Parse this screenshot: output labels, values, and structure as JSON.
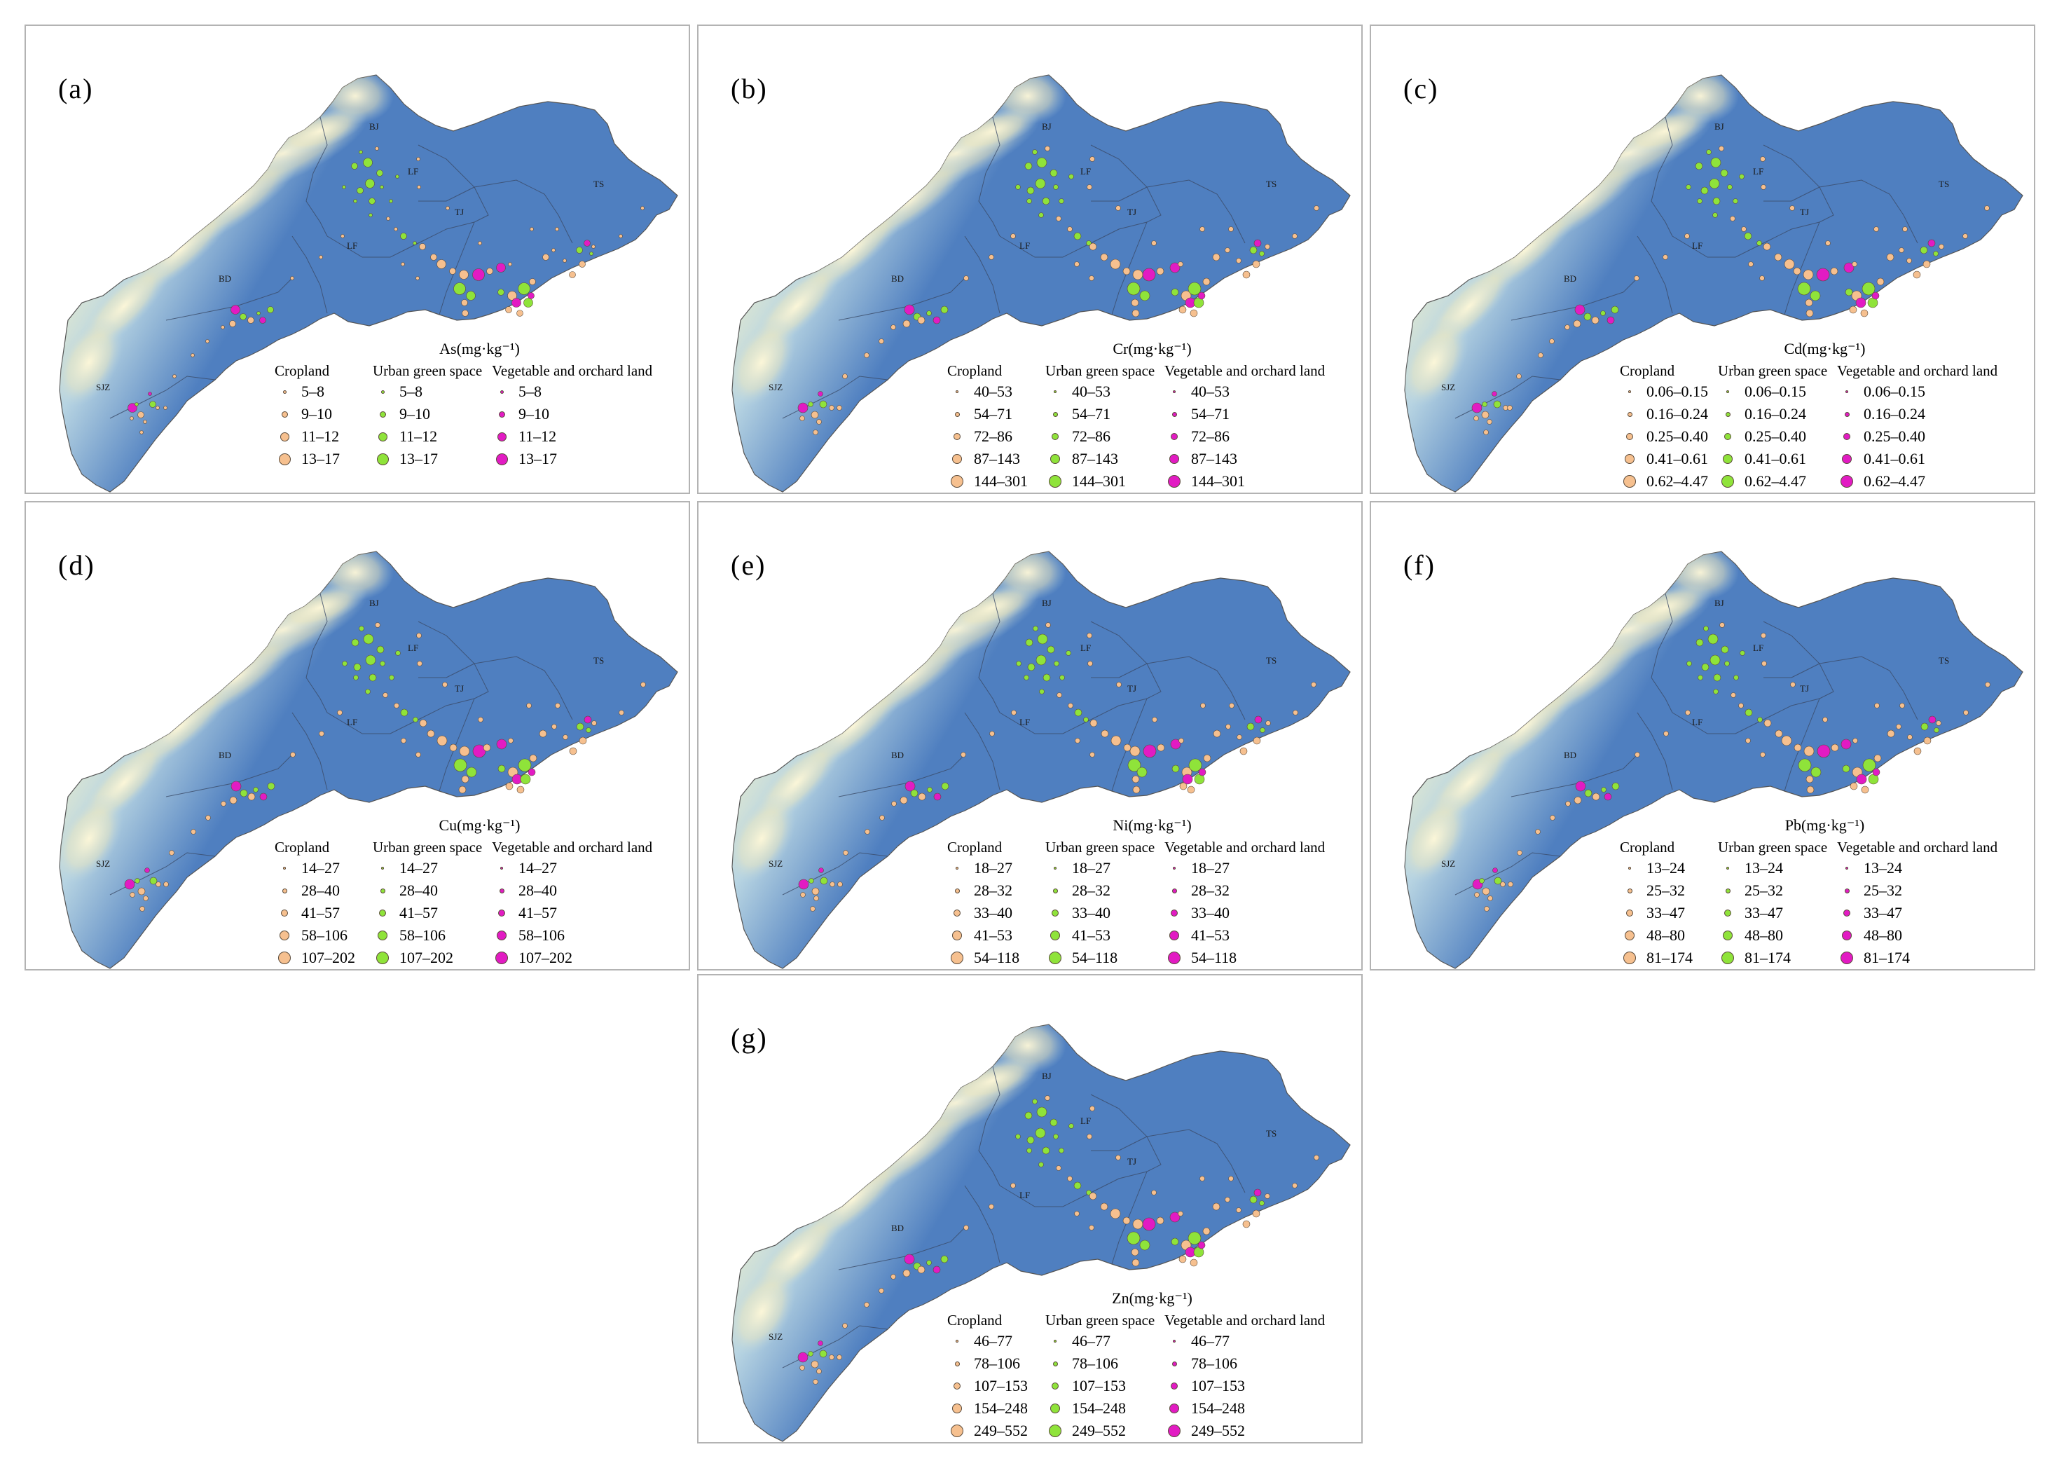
{
  "unit": "(mg·kg⁻¹)",
  "categories": [
    "Cropland",
    "Urban green space",
    "Vegetable and orchard land"
  ],
  "colors": {
    "cropland": "#f6c08f",
    "urban_green_space": "#8fe33a",
    "vegetable_orchard": "#e21bc3",
    "outline": "#555555",
    "terrain_low": "#4f7fc0",
    "terrain_high": "#e05a30"
  },
  "city_labels": [
    "BJ",
    "LF",
    "TJ",
    "LF",
    "TS",
    "BD",
    "SJZ"
  ],
  "panels": [
    {
      "label": "(a)",
      "element": "As",
      "ranges": [
        "5–8",
        "9–10",
        "11–12",
        "13–17"
      ]
    },
    {
      "label": "(b)",
      "element": "Cr",
      "ranges": [
        "40–53",
        "54–71",
        "72–86",
        "87–143",
        "144–301"
      ]
    },
    {
      "label": "(c)",
      "element": "Cd",
      "ranges": [
        "0.06–0.15",
        "0.16–0.24",
        "0.25–0.40",
        "0.41–0.61",
        "0.62–4.47"
      ]
    },
    {
      "label": "(d)",
      "element": "Cu",
      "ranges": [
        "14–27",
        "28–40",
        "41–57",
        "58–106",
        "107–202"
      ]
    },
    {
      "label": "(e)",
      "element": "Ni",
      "ranges": [
        "18–27",
        "28–32",
        "33–40",
        "41–53",
        "54–118"
      ]
    },
    {
      "label": "(f)",
      "element": "Pb",
      "ranges": [
        "13–24",
        "25–32",
        "33–47",
        "48–80",
        "81–174"
      ]
    },
    {
      "label": "(g)",
      "element": "Zn",
      "ranges": [
        "46–77",
        "78–106",
        "107–153",
        "154–248",
        "249–552"
      ]
    }
  ]
}
